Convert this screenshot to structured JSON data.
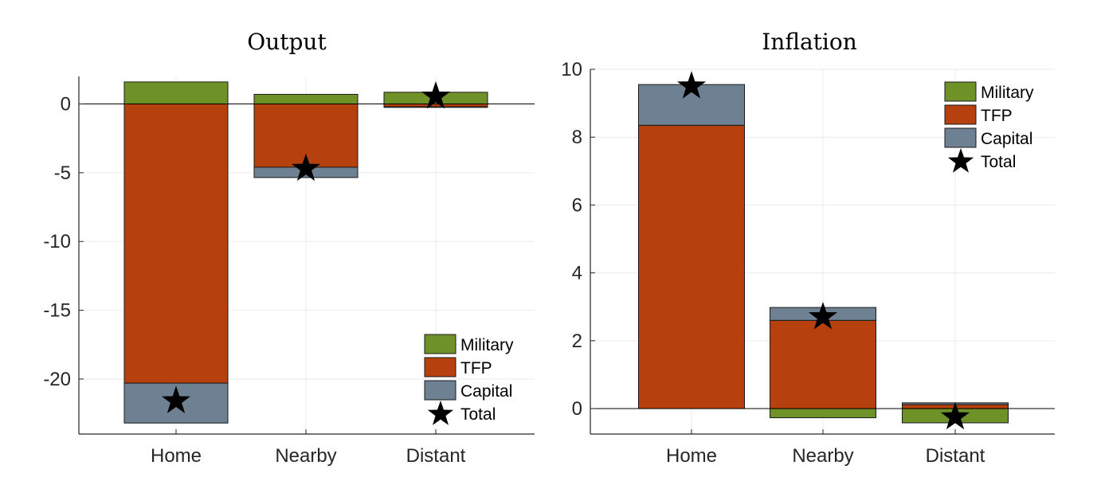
{
  "colors": {
    "Military": "#6f9228",
    "TFP": "#b7410e",
    "Capital": "#6e8192",
    "Total": "#000000",
    "grid": "#ebebeb",
    "axis": "#262626"
  },
  "chart_data": [
    {
      "type": "bar",
      "stacked": true,
      "title": "Output",
      "categories": [
        "Home",
        "Nearby",
        "Distant"
      ],
      "ylim": [
        -24,
        2
      ],
      "yticks": [
        0,
        -5,
        -10,
        -15,
        -20
      ],
      "ytick_labels": [
        "0",
        "-5",
        "-10",
        "-15",
        "-20"
      ],
      "grid": true,
      "legend": {
        "position": "bottom-right",
        "entries": [
          "Military",
          "TFP",
          "Capital",
          "Total"
        ]
      },
      "series": [
        {
          "name": "Military",
          "values": [
            1.6,
            0.7,
            0.85
          ]
        },
        {
          "name": "TFP",
          "values": [
            -20.3,
            -4.6,
            -0.2
          ]
        },
        {
          "name": "Capital",
          "values": [
            -2.9,
            -0.75,
            -0.05
          ]
        },
        {
          "name": "Total",
          "marker": "star",
          "values": [
            -21.6,
            -4.7,
            0.55
          ]
        }
      ]
    },
    {
      "type": "bar",
      "stacked": true,
      "title": "Inflation",
      "categories": [
        "Home",
        "Nearby",
        "Distant"
      ],
      "ylim": [
        -0.75,
        10
      ],
      "yticks": [
        10,
        8,
        6,
        4,
        2,
        0
      ],
      "ytick_labels": [
        "10",
        "8",
        "6",
        "4",
        "2",
        "0"
      ],
      "grid": true,
      "legend": {
        "position": "top-right",
        "entries": [
          "Military",
          "TFP",
          "Capital",
          "Total"
        ]
      },
      "series": [
        {
          "name": "Military",
          "values": [
            0,
            -0.27,
            -0.42
          ]
        },
        {
          "name": "TFP",
          "values": [
            8.35,
            2.6,
            0.12
          ]
        },
        {
          "name": "Capital",
          "values": [
            1.2,
            0.38,
            0.05
          ]
        },
        {
          "name": "Total",
          "marker": "star",
          "values": [
            9.5,
            2.7,
            -0.25
          ]
        }
      ]
    }
  ]
}
